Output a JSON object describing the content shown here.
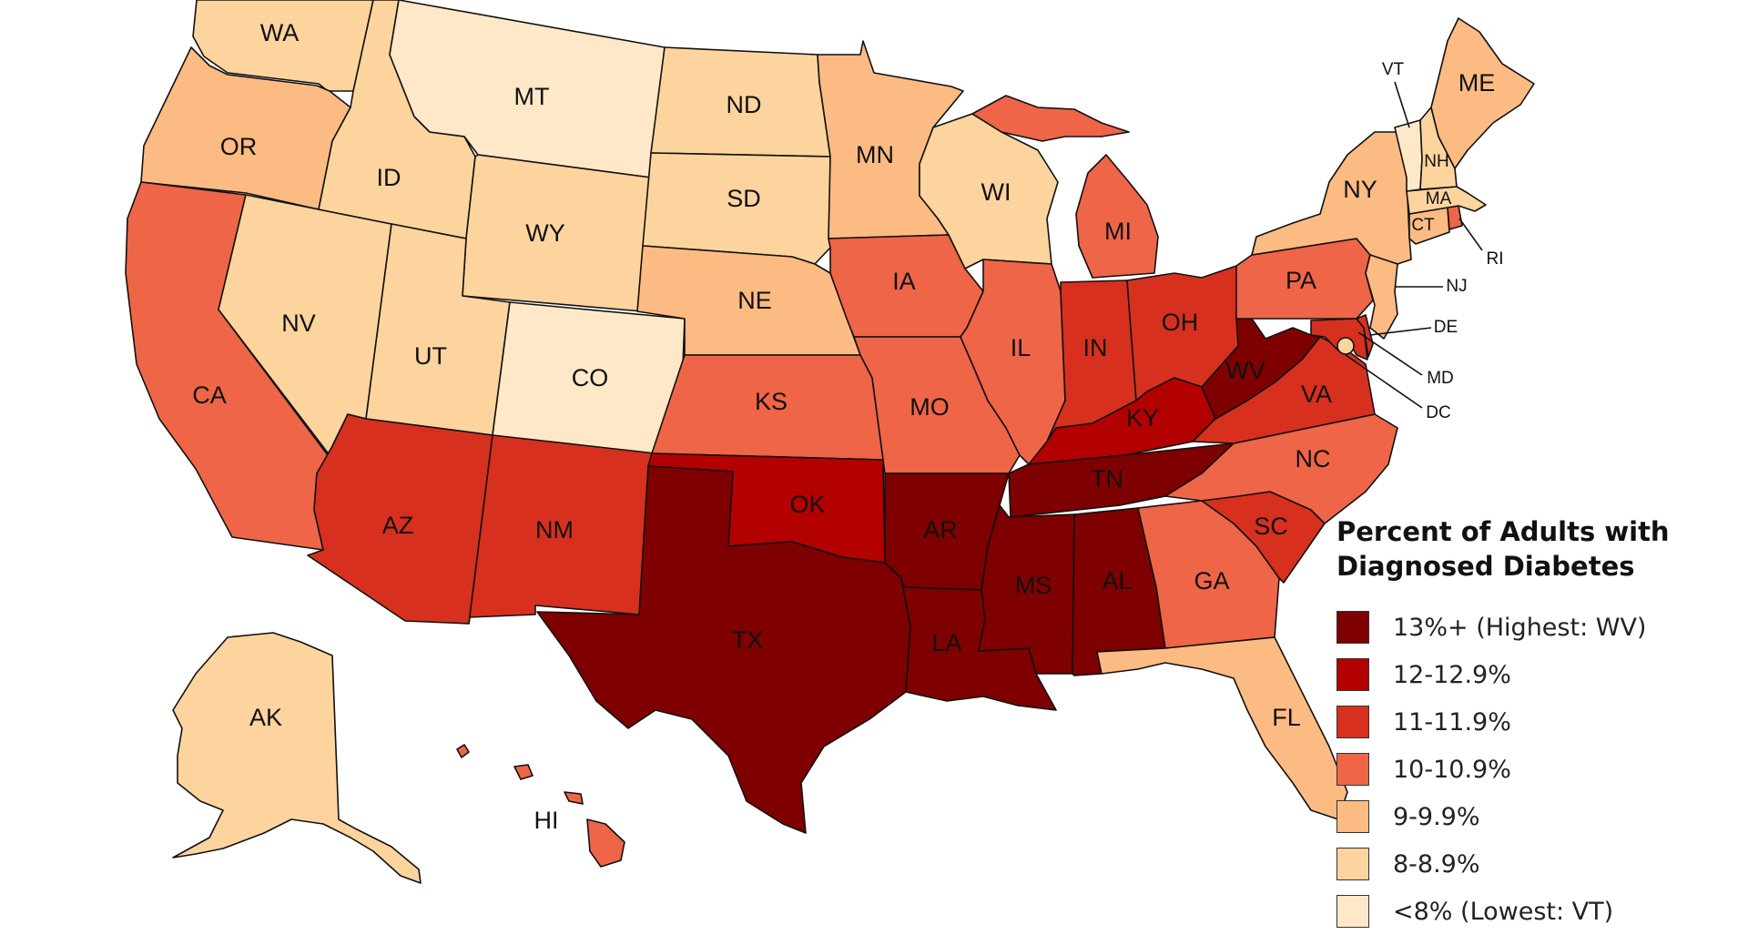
{
  "legend": {
    "title_line1": "Percent of Adults with",
    "title_line2": "Diagnosed Diabetes",
    "items": [
      {
        "label": "13%+ (Highest: WV)",
        "color": "#7f0000"
      },
      {
        "label": "12-12.9%",
        "color": "#b30000"
      },
      {
        "label": "11-11.9%",
        "color": "#d7301f"
      },
      {
        "label": "10-10.9%",
        "color": "#ef6548"
      },
      {
        "label": "9-9.9%",
        "color": "#fdbb84"
      },
      {
        "label": "8-8.9%",
        "color": "#fdd49e"
      },
      {
        "label": "<8% (Lowest: VT)",
        "color": "#fee8c8"
      }
    ]
  },
  "states": {
    "WA": {
      "label": "WA",
      "bin": 5
    },
    "OR": {
      "label": "OR",
      "bin": 4
    },
    "CA": {
      "label": "CA",
      "bin": 3
    },
    "NV": {
      "label": "NV",
      "bin": 5
    },
    "ID": {
      "label": "ID",
      "bin": 5
    },
    "MT": {
      "label": "MT",
      "bin": 6
    },
    "WY": {
      "label": "WY",
      "bin": 5
    },
    "UT": {
      "label": "UT",
      "bin": 5
    },
    "CO": {
      "label": "CO",
      "bin": 6
    },
    "AZ": {
      "label": "AZ",
      "bin": 2
    },
    "NM": {
      "label": "NM",
      "bin": 2
    },
    "ND": {
      "label": "ND",
      "bin": 5
    },
    "SD": {
      "label": "SD",
      "bin": 5
    },
    "NE": {
      "label": "NE",
      "bin": 4
    },
    "KS": {
      "label": "KS",
      "bin": 3
    },
    "OK": {
      "label": "OK",
      "bin": 1
    },
    "TX": {
      "label": "TX",
      "bin": 0
    },
    "MN": {
      "label": "MN",
      "bin": 4
    },
    "IA": {
      "label": "IA",
      "bin": 3
    },
    "MO": {
      "label": "MO",
      "bin": 3
    },
    "AR": {
      "label": "AR",
      "bin": 0
    },
    "LA": {
      "label": "LA",
      "bin": 0
    },
    "WI": {
      "label": "WI",
      "bin": 5
    },
    "IL": {
      "label": "IL",
      "bin": 3
    },
    "MI": {
      "label": "MI",
      "bin": 3
    },
    "IN": {
      "label": "IN",
      "bin": 2
    },
    "OH": {
      "label": "OH",
      "bin": 2
    },
    "KY": {
      "label": "KY",
      "bin": 1
    },
    "TN": {
      "label": "TN",
      "bin": 0
    },
    "MS": {
      "label": "MS",
      "bin": 0
    },
    "AL": {
      "label": "AL",
      "bin": 0
    },
    "GA": {
      "label": "GA",
      "bin": 3
    },
    "FL": {
      "label": "FL",
      "bin": 4
    },
    "SC": {
      "label": "SC",
      "bin": 2
    },
    "NC": {
      "label": "NC",
      "bin": 3
    },
    "VA": {
      "label": "VA",
      "bin": 2
    },
    "WV": {
      "label": "WV",
      "bin": 0
    },
    "PA": {
      "label": "PA",
      "bin": 3
    },
    "NY": {
      "label": "NY",
      "bin": 4
    },
    "NJ": {
      "label": "NJ",
      "bin": 4
    },
    "DE": {
      "label": "DE",
      "bin": 2
    },
    "MD": {
      "label": "MD",
      "bin": 2
    },
    "DC": {
      "label": "DC",
      "bin": 5
    },
    "CT": {
      "label": "CT",
      "bin": 4
    },
    "RI": {
      "label": "RI",
      "bin": 3
    },
    "MA": {
      "label": "MA",
      "bin": 5
    },
    "VT": {
      "label": "VT",
      "bin": 6
    },
    "NH": {
      "label": "NH",
      "bin": 5
    },
    "ME": {
      "label": "ME",
      "bin": 4
    },
    "AK": {
      "label": "AK",
      "bin": 5
    },
    "HI": {
      "label": "HI",
      "bin": 3
    }
  }
}
